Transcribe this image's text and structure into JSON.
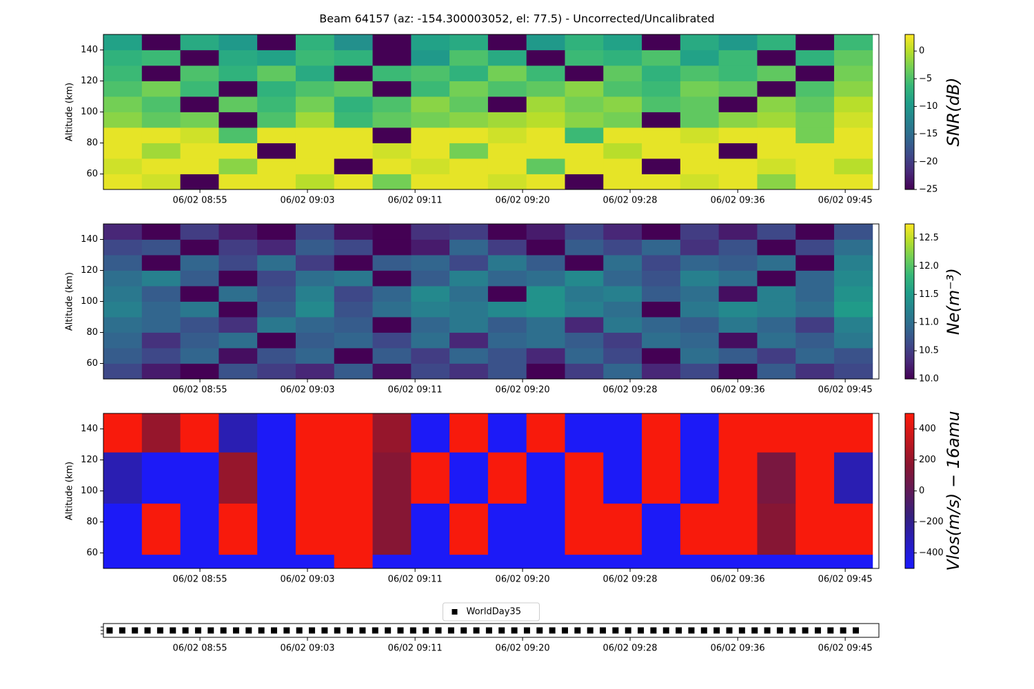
{
  "title": "Beam 64157 (az: -154.300003052, el: 77.5) - Uncorrected/Uncalibrated",
  "chart_data": [
    {
      "type": "heatmap",
      "ylabel": "Altitude (km)",
      "colorbar_label": "SNR(dB)",
      "cmap": "viridis",
      "xlim": [
        527.52,
        587.61
      ],
      "xticks": [
        {
          "value": 535,
          "label": "06/02 08:55"
        },
        {
          "value": 543.33,
          "label": "06/02 09:03"
        },
        {
          "value": 551.67,
          "label": "06/02 09:11"
        },
        {
          "value": 560,
          "label": "06/02 09:20"
        },
        {
          "value": 568.33,
          "label": "06/02 09:28"
        },
        {
          "value": 576.67,
          "label": "06/02 09:36"
        },
        {
          "value": 585,
          "label": "06/02 09:45"
        }
      ],
      "ylim": [
        50,
        150
      ],
      "yticks": [
        60,
        80,
        100,
        120,
        140
      ],
      "zlim": [
        -25,
        3
      ],
      "zticks": [
        0,
        {
          "value": -5,
          "label": "−5"
        },
        {
          "value": -10,
          "label": "−10"
        },
        {
          "value": -15,
          "label": "−15"
        },
        {
          "value": -20,
          "label": "−20"
        },
        {
          "value": -25,
          "label": "−25"
        }
      ],
      "x_edges": [
        527.52,
        530.5,
        533.48,
        536.46,
        539.44,
        542.42,
        545.4,
        548.38,
        551.36,
        554.34,
        557.32,
        560.3,
        563.28,
        566.26,
        569.24,
        572.22,
        575.2,
        578.18,
        581.16,
        584.14,
        587.12
      ],
      "y_edges": [
        50,
        60,
        70,
        80,
        90,
        100,
        110,
        120,
        130,
        140,
        150
      ],
      "z": [
        [
          2,
          1,
          -25,
          2,
          2,
          0,
          2,
          -3,
          2,
          2,
          1,
          2,
          -25,
          2,
          2,
          1,
          2,
          -2,
          2,
          2
        ],
        [
          1,
          2,
          2,
          -2,
          2,
          2,
          -25,
          2,
          1,
          2,
          2,
          -4,
          2,
          2,
          -25,
          2,
          2,
          1,
          2,
          0
        ],
        [
          2,
          -1,
          2,
          2,
          -25,
          2,
          2,
          1,
          2,
          -3,
          2,
          2,
          2,
          0,
          2,
          2,
          -25,
          2,
          2,
          2
        ],
        [
          2,
          2,
          1,
          -5,
          2,
          2,
          2,
          -25,
          2,
          2,
          1,
          2,
          -6,
          2,
          2,
          1,
          2,
          2,
          -3,
          2
        ],
        [
          -2,
          -4,
          -3,
          -25,
          -5,
          -1,
          -6,
          -4,
          -3,
          -2,
          -1,
          0,
          -2,
          -3,
          -25,
          -4,
          -2,
          -1,
          -3,
          1
        ],
        [
          -3,
          -5,
          -25,
          -4,
          -6,
          -3,
          -7,
          -5,
          -2,
          -4,
          -25,
          -1,
          -3,
          -2,
          -5,
          -4,
          -25,
          -2,
          -4,
          0
        ],
        [
          -5,
          -3,
          -6,
          -25,
          -7,
          -5,
          -4,
          -25,
          -6,
          -3,
          -5,
          -4,
          -2,
          -5,
          -6,
          -3,
          -4,
          -25,
          -5,
          -2
        ],
        [
          -6,
          -25,
          -5,
          -7,
          -4,
          -8,
          -25,
          -6,
          -5,
          -7,
          -3,
          -6,
          -25,
          -4,
          -7,
          -5,
          -6,
          -4,
          -25,
          -3
        ],
        [
          -7,
          -6,
          -25,
          -8,
          -9,
          -6,
          -7,
          -25,
          -10,
          -5,
          -8,
          -25,
          -6,
          -7,
          -5,
          -9,
          -6,
          -25,
          -7,
          -4
        ],
        [
          -9,
          -25,
          -8,
          -10,
          -25,
          -7,
          -11,
          -25,
          -9,
          -8,
          -25,
          -10,
          -7,
          -9,
          -25,
          -8,
          -10,
          -7,
          -25,
          -6
        ]
      ]
    },
    {
      "type": "heatmap",
      "ylabel": "Altitude (km)",
      "colorbar_label": "Ne(m⁻³)",
      "cmap": "viridis",
      "xlim": [
        527.52,
        587.61
      ],
      "xticks": [
        {
          "value": 535,
          "label": "06/02 08:55"
        },
        {
          "value": 543.33,
          "label": "06/02 09:03"
        },
        {
          "value": 551.67,
          "label": "06/02 09:11"
        },
        {
          "value": 560,
          "label": "06/02 09:20"
        },
        {
          "value": 568.33,
          "label": "06/02 09:28"
        },
        {
          "value": 576.67,
          "label": "06/02 09:36"
        },
        {
          "value": 585,
          "label": "06/02 09:45"
        }
      ],
      "ylim": [
        50,
        150
      ],
      "yticks": [
        60,
        80,
        100,
        120,
        140
      ],
      "zlim": [
        10,
        12.75
      ],
      "zticks": [
        {
          "value": 10,
          "label": "10.0"
        },
        10.5,
        {
          "value": 11,
          "label": "11.0"
        },
        11.5,
        {
          "value": 12,
          "label": "12.0"
        },
        12.5
      ],
      "x_edges": [
        527.52,
        530.5,
        533.48,
        536.46,
        539.44,
        542.42,
        545.4,
        548.38,
        551.36,
        554.34,
        557.32,
        560.3,
        563.28,
        566.26,
        569.24,
        572.22,
        575.2,
        578.18,
        581.16,
        584.14,
        587.12
      ],
      "y_edges": [
        50,
        60,
        70,
        80,
        90,
        100,
        110,
        120,
        130,
        140,
        150
      ],
      "z": [
        [
          10.6,
          10.2,
          10.0,
          10.7,
          10.5,
          10.3,
          10.8,
          10.1,
          10.6,
          10.4,
          10.7,
          10.0,
          10.5,
          10.9,
          10.3,
          10.6,
          10.0,
          10.8,
          10.4,
          10.6
        ],
        [
          10.8,
          10.6,
          10.9,
          10.1,
          10.7,
          10.9,
          10.0,
          10.8,
          10.5,
          10.9,
          10.7,
          10.3,
          10.9,
          10.6,
          10.0,
          11.0,
          10.8,
          10.5,
          10.9,
          10.7
        ],
        [
          10.9,
          10.4,
          10.8,
          11.0,
          10.0,
          10.8,
          10.9,
          10.6,
          11.0,
          10.3,
          10.9,
          11.0,
          10.8,
          10.5,
          11.0,
          10.9,
          10.1,
          11.0,
          10.8,
          11.1
        ],
        [
          11.0,
          10.9,
          10.7,
          10.4,
          11.1,
          10.9,
          10.8,
          10.0,
          10.9,
          11.1,
          10.8,
          11.0,
          10.3,
          11.1,
          10.9,
          10.8,
          11.1,
          10.9,
          10.5,
          11.2
        ],
        [
          11.2,
          10.9,
          11.1,
          10.0,
          10.8,
          11.3,
          10.7,
          11.0,
          11.2,
          11.1,
          11.3,
          11.4,
          11.2,
          11.0,
          10.0,
          11.1,
          11.3,
          11.2,
          11.0,
          11.5
        ],
        [
          11.1,
          10.8,
          10.0,
          11.0,
          10.7,
          11.2,
          10.6,
          10.9,
          11.3,
          11.0,
          10.0,
          11.4,
          11.1,
          11.2,
          10.8,
          11.0,
          10.1,
          11.2,
          10.9,
          11.4
        ],
        [
          11.0,
          11.2,
          10.8,
          10.0,
          10.6,
          11.0,
          11.1,
          10.0,
          10.8,
          11.2,
          10.9,
          11.0,
          11.3,
          10.9,
          10.7,
          11.2,
          11.0,
          10.0,
          10.9,
          11.3
        ],
        [
          10.8,
          10.0,
          10.9,
          10.6,
          11.0,
          10.5,
          10.0,
          10.8,
          10.9,
          10.6,
          11.1,
          10.8,
          10.0,
          11.0,
          10.6,
          10.9,
          10.8,
          11.0,
          10.0,
          11.2
        ],
        [
          10.6,
          10.7,
          10.0,
          10.5,
          10.3,
          10.8,
          10.6,
          10.0,
          10.2,
          10.9,
          10.5,
          10.0,
          10.8,
          10.6,
          10.9,
          10.4,
          10.7,
          10.0,
          10.6,
          11.0
        ],
        [
          10.3,
          10.0,
          10.5,
          10.2,
          10.0,
          10.6,
          10.1,
          10.0,
          10.4,
          10.5,
          10.0,
          10.2,
          10.6,
          10.3,
          10.0,
          10.5,
          10.2,
          10.6,
          10.0,
          10.7
        ]
      ]
    },
    {
      "type": "heatmap",
      "ylabel": "Altitude (km)",
      "colorbar_label": "Vlos(m/s) − 16amu",
      "cmap_colors": [
        "#1a1aff",
        "#35207f",
        "#8a1530",
        "#ff1a0a"
      ],
      "xlim": [
        527.52,
        587.61
      ],
      "xticks": [
        {
          "value": 535,
          "label": "06/02 08:55"
        },
        {
          "value": 543.33,
          "label": "06/02 09:03"
        },
        {
          "value": 551.67,
          "label": "06/02 09:11"
        },
        {
          "value": 560,
          "label": "06/02 09:20"
        },
        {
          "value": 568.33,
          "label": "06/02 09:28"
        },
        {
          "value": 576.67,
          "label": "06/02 09:36"
        },
        {
          "value": 585,
          "label": "06/02 09:45"
        }
      ],
      "ylim": [
        50,
        150
      ],
      "yticks": [
        60,
        80,
        100,
        120,
        140
      ],
      "zlim": [
        -500,
        500
      ],
      "zticks": [
        400,
        200,
        0,
        {
          "value": -200,
          "label": "−200"
        },
        {
          "value": -400,
          "label": "−400"
        }
      ],
      "x_edges": [
        527.52,
        530.5,
        533.48,
        536.46,
        539.44,
        542.42,
        545.4,
        548.38,
        551.36,
        554.34,
        557.32,
        560.3,
        563.28,
        566.26,
        569.24,
        572.22,
        575.2,
        578.18,
        581.16,
        584.14,
        587.12
      ],
      "y_edges": [
        50,
        59,
        92,
        125,
        150
      ],
      "z": [
        [
          -480,
          -480,
          -480,
          -480,
          -480,
          -480,
          480,
          -480,
          -480,
          -480,
          -480,
          -480,
          -480,
          -480,
          -480,
          -480,
          -480,
          -480,
          -480,
          -480
        ],
        [
          -480,
          480,
          -480,
          480,
          -480,
          480,
          480,
          150,
          -480,
          480,
          -480,
          -480,
          480,
          480,
          -480,
          480,
          480,
          150,
          480,
          480
        ],
        [
          -300,
          -480,
          -480,
          200,
          -480,
          480,
          480,
          150,
          480,
          -480,
          480,
          -480,
          480,
          -480,
          480,
          -480,
          480,
          100,
          480,
          -300
        ],
        [
          480,
          200,
          480,
          -300,
          -480,
          480,
          480,
          200,
          -480,
          480,
          -480,
          480,
          -480,
          -480,
          480,
          -480,
          480,
          480,
          480,
          480
        ]
      ]
    },
    {
      "type": "scatter",
      "legend": "upper center",
      "xlim": [
        527.52,
        587.61
      ],
      "xticks": [
        {
          "value": 535,
          "label": "06/02 08:55"
        },
        {
          "value": 543.33,
          "label": "06/02 09:03"
        },
        {
          "value": 551.67,
          "label": "06/02 09:11"
        },
        {
          "value": 560,
          "label": "06/02 09:20"
        },
        {
          "value": 568.33,
          "label": "06/02 09:28"
        },
        {
          "value": 576.67,
          "label": "06/02 09:36"
        },
        {
          "value": 585,
          "label": "06/02 09:45"
        }
      ],
      "ylim": [
        0.9,
        1.1
      ],
      "series": [
        {
          "name": "WorldDay35",
          "color": "#000000",
          "x": [
            528.0,
            528.98,
            529.96,
            530.94,
            531.92,
            532.9,
            533.88,
            534.86,
            535.84,
            536.82,
            537.8,
            538.78,
            539.76,
            540.74,
            541.72,
            542.7,
            543.68,
            544.66,
            545.64,
            546.62,
            547.6,
            548.58,
            549.56,
            550.54,
            551.52,
            552.5,
            553.48,
            554.46,
            555.44,
            556.42,
            557.4,
            558.38,
            559.36,
            560.34,
            561.32,
            562.3,
            563.28,
            564.26,
            565.24,
            566.22,
            567.2,
            568.18,
            569.16,
            570.14,
            571.12,
            572.1,
            573.08,
            574.06,
            575.04,
            576.02,
            577.0,
            577.98,
            578.96,
            579.94,
            580.92,
            581.9,
            582.88,
            583.86,
            584.84,
            585.82
          ],
          "values": [
            1,
            1,
            1,
            1,
            1,
            1,
            1,
            1,
            1,
            1,
            1,
            1,
            1,
            1,
            1,
            1,
            1,
            1,
            1,
            1,
            1,
            1,
            1,
            1,
            1,
            1,
            1,
            1,
            1,
            1,
            1,
            1,
            1,
            1,
            1,
            1,
            1,
            1,
            1,
            1,
            1,
            1,
            1,
            1,
            1,
            1,
            1,
            1,
            1,
            1,
            1,
            1,
            1,
            1,
            1,
            1,
            1,
            1,
            1,
            1
          ]
        }
      ]
    }
  ]
}
